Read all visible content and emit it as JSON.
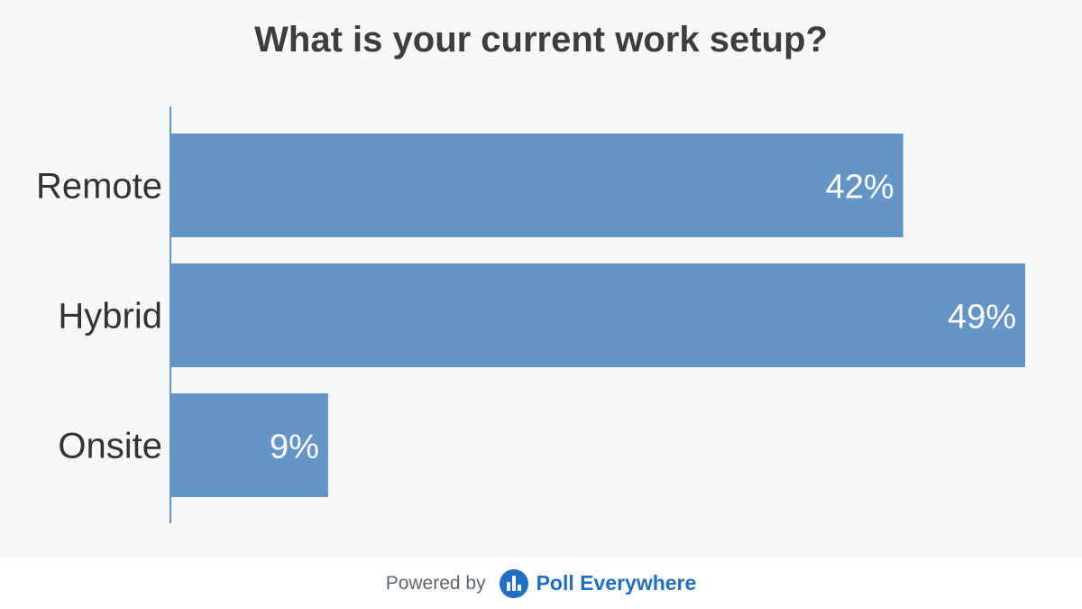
{
  "chart_data": {
    "type": "bar",
    "orientation": "horizontal",
    "title": "What is your current work setup?",
    "categories": [
      "Remote",
      "Hybrid",
      "Onsite"
    ],
    "values": [
      42,
      49,
      9
    ],
    "value_labels": [
      "42%",
      "49%",
      "9%"
    ],
    "unit": "%",
    "grid": false,
    "bar_color": "#6395c6",
    "label_color": "#ffffff"
  },
  "footer": {
    "powered_by": "Powered by",
    "brand": "Poll Everywhere",
    "logo_icon": "poll-everywhere-logo-icon",
    "brand_color": "#1f6fc5"
  }
}
